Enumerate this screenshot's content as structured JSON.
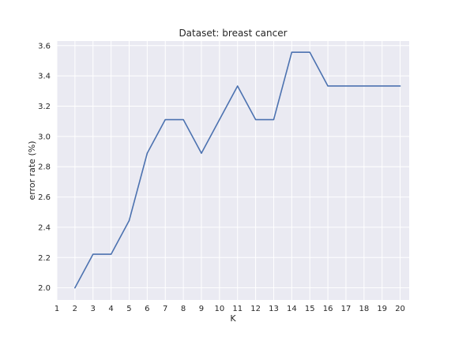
{
  "chart_data": {
    "type": "line",
    "title": "Dataset: breast cancer",
    "xlabel": "K",
    "ylabel": "error rate (%)",
    "x_ticks": [
      1,
      2,
      3,
      4,
      5,
      6,
      7,
      8,
      9,
      10,
      11,
      12,
      13,
      14,
      15,
      16,
      17,
      18,
      19,
      20
    ],
    "y_ticks": [
      "2.0",
      "2.2",
      "2.4",
      "2.6",
      "2.8",
      "3.0",
      "3.2",
      "3.4",
      "3.6"
    ],
    "xlim": [
      1,
      20.5
    ],
    "ylim": [
      1.92,
      3.63
    ],
    "grid": true,
    "series": [
      {
        "x": [
          2,
          3,
          4,
          5,
          6,
          7,
          8,
          9,
          10,
          11,
          12,
          13,
          14,
          15,
          16,
          17,
          18,
          19,
          20
        ],
        "values": [
          2.0,
          2.222,
          2.222,
          2.444,
          2.889,
          3.111,
          3.111,
          2.889,
          3.111,
          3.333,
          3.111,
          3.111,
          3.556,
          3.556,
          3.333,
          3.333,
          3.333,
          3.333,
          3.333
        ]
      }
    ],
    "colors": {
      "background": "#ffffff",
      "plot_background": "#eaeaf2",
      "grid": "#ffffff",
      "line": "#4c72b0",
      "text": "#262626"
    }
  }
}
